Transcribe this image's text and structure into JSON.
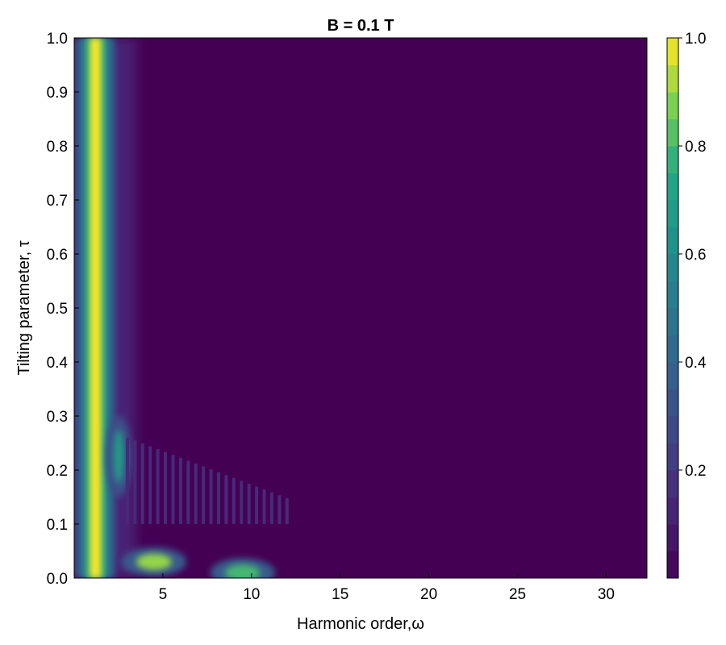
{
  "chart_data": {
    "type": "heatmap",
    "title": "B = 0.1 T",
    "xlabel": "Harmonic order,ω",
    "ylabel": "Tilting parameter, τ",
    "xlim": [
      0,
      32.3
    ],
    "ylim": [
      0.0,
      1.0
    ],
    "x_ticks": [
      5,
      10,
      15,
      20,
      25,
      30
    ],
    "x_tick_labels": [
      "5",
      "10",
      "15",
      "20",
      "25",
      "30"
    ],
    "y_ticks": [
      0.0,
      0.1,
      0.2,
      0.3,
      0.4,
      0.5,
      0.6,
      0.7,
      0.8,
      0.9,
      1.0
    ],
    "y_tick_labels": [
      "0.0",
      "0.1",
      "0.2",
      "0.3",
      "0.4",
      "0.5",
      "0.6",
      "0.7",
      "0.8",
      "0.9",
      "1.0"
    ],
    "colorbar": {
      "colormap": "viridis",
      "levels": 20,
      "range": [
        0.0,
        1.0
      ],
      "ticks": [
        0.2,
        0.4,
        0.6,
        0.8,
        1.0
      ],
      "tick_labels": [
        "0.2",
        "0.4",
        "0.6",
        "0.8",
        "1.0"
      ]
    },
    "features": [
      {
        "type": "ridge",
        "x": 1.2,
        "y_range": [
          0.0,
          1.0
        ],
        "value": 1.0
      },
      {
        "type": "band",
        "x": 2.5,
        "y_range": [
          0.15,
          0.3
        ],
        "value": 0.7
      },
      {
        "type": "spot",
        "x": 4.5,
        "y": 0.03,
        "value": 0.9
      },
      {
        "type": "spot",
        "x": 9.5,
        "y": 0.01,
        "value": 0.8
      },
      {
        "type": "fringe",
        "x_range": [
          3,
          12
        ],
        "y_range": [
          0.1,
          0.26
        ],
        "value": 0.15
      }
    ],
    "grid": false,
    "legend": "none"
  }
}
